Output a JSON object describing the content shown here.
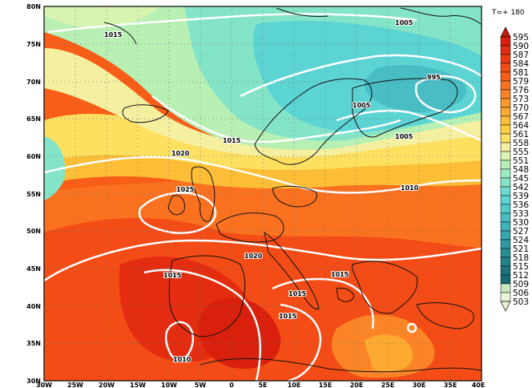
{
  "forecast": {
    "time_label": "T=+ 180"
  },
  "map": {
    "lat_ticks": [
      "80N",
      "75N",
      "70N",
      "65N",
      "60N",
      "55N",
      "50N",
      "45N",
      "40N",
      "35N",
      "30N"
    ],
    "lon_ticks": [
      "30W",
      "25W",
      "20W",
      "15W",
      "10W",
      "5W",
      "0",
      "5E",
      "10E",
      "15E",
      "20E",
      "25E",
      "30E",
      "35E",
      "40E"
    ],
    "isobar_labels": [
      "1015",
      "1005",
      "995",
      "1005",
      "1015",
      "1020",
      "1005",
      "1025",
      "1010",
      "1020",
      "1015",
      "1015",
      "1015",
      "1015",
      "1010"
    ]
  },
  "legend": {
    "values": [
      "595",
      "590",
      "587",
      "584",
      "581",
      "579",
      "576",
      "573",
      "570",
      "567",
      "564",
      "561",
      "558",
      "555",
      "551",
      "548",
      "545",
      "542",
      "539",
      "536",
      "533",
      "530",
      "527",
      "524",
      "521",
      "518",
      "515",
      "512",
      "509",
      "506",
      "503"
    ],
    "colors": [
      "#c81a0a",
      "#d8200c",
      "#e42c10",
      "#ee3a12",
      "#f44c16",
      "#f85e18",
      "#fa7220",
      "#fb8526",
      "#fc982c",
      "#fcab30",
      "#fcbe36",
      "#fcd03c",
      "#fde060",
      "#f4f0a0",
      "#d8f4b0",
      "#b8f0b4",
      "#9ceac0",
      "#84e4c8",
      "#6cdcd0",
      "#5cd4d4",
      "#52cacc",
      "#48bec4",
      "#3eb2ba",
      "#36a6ae",
      "#2e9aa2",
      "#288e96",
      "#22828a",
      "#1c767e",
      "#166a72",
      "#c8e8c0",
      "#e8f4d8"
    ]
  }
}
